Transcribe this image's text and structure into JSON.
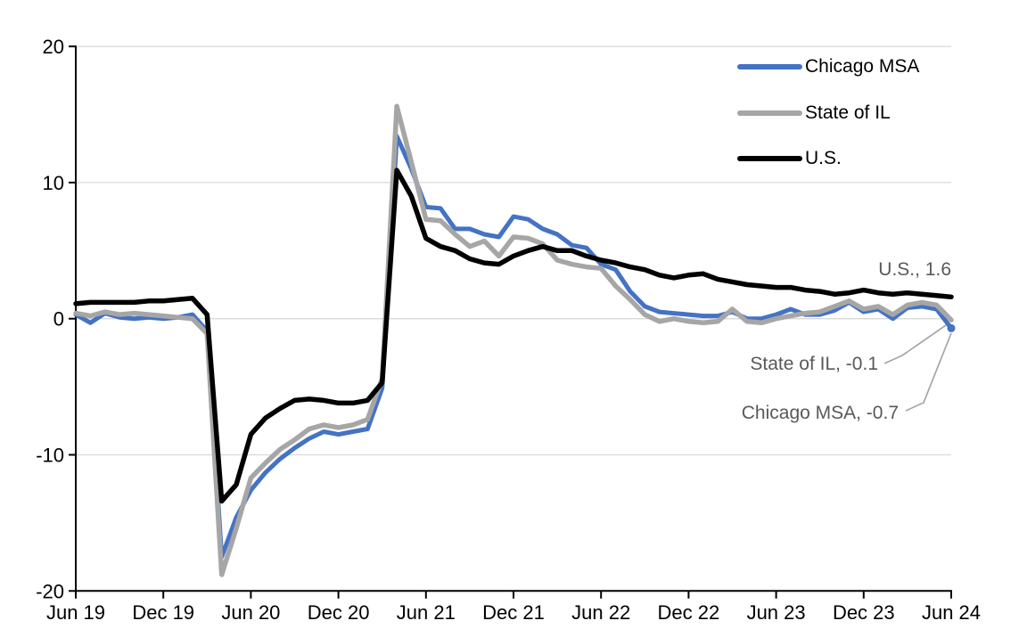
{
  "figure": {
    "background": "#ffffff",
    "plot": {
      "gridline_color": "#D9D9D9",
      "axis_color": "#000000",
      "leader_line_color": "#A6A6A6",
      "annotation_text_color": "#595959"
    }
  },
  "legend": {
    "position": "top-right",
    "items": [
      {
        "label": "Chicago MSA",
        "color": "#4472C4"
      },
      {
        "label": "State of IL",
        "color": "#A6A6A6"
      },
      {
        "label": "U.S.",
        "color": "#000000"
      }
    ]
  },
  "annotations": {
    "us": "U.S., 1.6",
    "il": "State of IL, -0.1",
    "chicago": "Chicago MSA, -0.7"
  },
  "y_axis": {
    "tick_labels": [
      "20",
      "10",
      "0",
      "-10",
      "-20"
    ],
    "tick_values": [
      20,
      10,
      0,
      -10,
      -20
    ],
    "min": -20,
    "max": 20
  },
  "x_axis": {
    "tick_labels": [
      "Jun 19",
      "Dec 19",
      "Jun 20",
      "Dec 20",
      "Jun 21",
      "Dec 21",
      "Jun 22",
      "Dec 22",
      "Jun 23",
      "Dec 23",
      "Jun 24"
    ],
    "tick_interval_months": 6
  },
  "chart_data": {
    "type": "line",
    "title": "",
    "xlabel": "",
    "ylabel": "",
    "ylim": [
      -20,
      20
    ],
    "gridlines": [
      20,
      10,
      0,
      -10
    ],
    "frequency": "monthly",
    "x_start_label": "Jun 19",
    "x_end_label": "Jun 24",
    "points_per_series": 61,
    "x_tick_labels": [
      "Jun 19",
      "Dec 19",
      "Jun 20",
      "Dec 20",
      "Jun 21",
      "Dec 21",
      "Jun 22",
      "Dec 22",
      "Jun 23",
      "Dec 23",
      "Jun 24"
    ],
    "legend_position": "top-right",
    "series": [
      {
        "name": "Chicago MSA",
        "color": "#4472C4",
        "stroke_width": 5,
        "end_label": "Chicago MSA, -0.7",
        "end_value": -0.7,
        "values": [
          0.3,
          -0.3,
          0.4,
          0.1,
          0.0,
          0.1,
          0.0,
          0.1,
          0.3,
          -0.9,
          -17.5,
          -14.6,
          -12.6,
          -11.3,
          -10.3,
          -9.5,
          -8.8,
          -8.3,
          -8.5,
          -8.3,
          -8.1,
          -5.1,
          13.4,
          11.0,
          8.2,
          8.1,
          6.6,
          6.6,
          6.2,
          6.0,
          7.5,
          7.3,
          6.6,
          6.2,
          5.4,
          5.2,
          4.0,
          3.6,
          2.0,
          0.9,
          0.5,
          0.4,
          0.3,
          0.2,
          0.2,
          0.5,
          0.0,
          0.0,
          0.3,
          0.7,
          0.3,
          0.3,
          0.6,
          1.2,
          0.5,
          0.7,
          0.0,
          0.8,
          0.9,
          0.7,
          -0.7
        ]
      },
      {
        "name": "State of IL",
        "color": "#A6A6A6",
        "stroke_width": 5.5,
        "end_label": "State of IL, -0.1",
        "end_value": -0.1,
        "values": [
          0.4,
          0.2,
          0.5,
          0.3,
          0.4,
          0.3,
          0.2,
          0.1,
          0.0,
          -1.1,
          -18.8,
          -15.4,
          -11.7,
          -10.6,
          -9.6,
          -8.9,
          -8.1,
          -7.8,
          -8.0,
          -7.8,
          -7.4,
          -4.4,
          15.6,
          11.5,
          7.3,
          7.2,
          6.2,
          5.3,
          5.7,
          4.6,
          6.0,
          5.9,
          5.5,
          4.3,
          4.0,
          3.8,
          3.7,
          2.4,
          1.4,
          0.3,
          -0.2,
          0.0,
          -0.2,
          -0.3,
          -0.2,
          0.7,
          -0.2,
          -0.3,
          0.0,
          0.2,
          0.4,
          0.5,
          0.9,
          1.3,
          0.7,
          0.9,
          0.3,
          1.0,
          1.2,
          1.0,
          -0.1
        ]
      },
      {
        "name": "U.S.",
        "color": "#000000",
        "stroke_width": 5.5,
        "end_label": "U.S., 1.6",
        "end_value": 1.6,
        "values": [
          1.1,
          1.2,
          1.2,
          1.2,
          1.2,
          1.3,
          1.3,
          1.4,
          1.5,
          0.3,
          -13.4,
          -12.2,
          -8.5,
          -7.3,
          -6.6,
          -6.0,
          -5.9,
          -6.0,
          -6.2,
          -6.2,
          -6.0,
          -4.7,
          10.9,
          9.0,
          5.9,
          5.3,
          5.0,
          4.4,
          4.1,
          4.0,
          4.6,
          5.0,
          5.3,
          5.0,
          5.0,
          4.6,
          4.3,
          4.1,
          3.8,
          3.6,
          3.2,
          3.0,
          3.2,
          3.3,
          2.9,
          2.7,
          2.5,
          2.4,
          2.3,
          2.3,
          2.1,
          2.0,
          1.8,
          1.9,
          2.1,
          1.9,
          1.8,
          1.9,
          1.8,
          1.7,
          1.6
        ]
      }
    ]
  }
}
